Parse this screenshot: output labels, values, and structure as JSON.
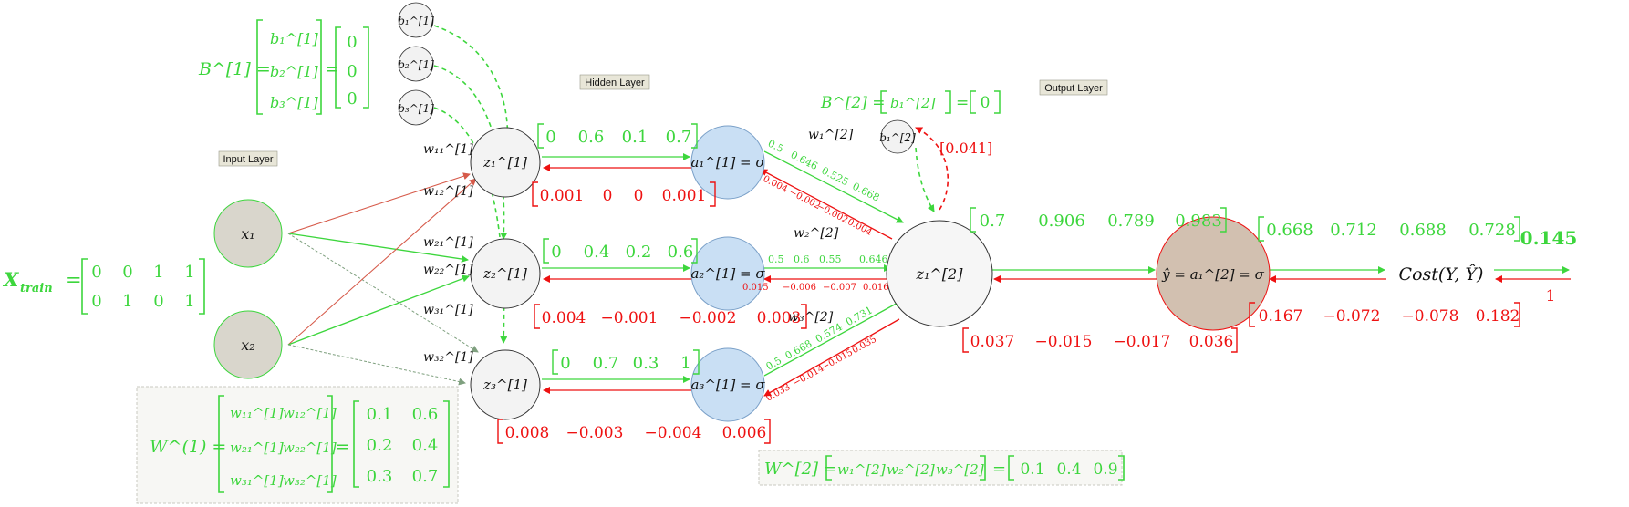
{
  "colors": {
    "forward": "#3dd63d",
    "backward": "#ee1111",
    "input_fill": "#d9d6cc",
    "hidden_z_fill": "#f3f3f3",
    "hidden_a_fill": "#c9dff4",
    "output_z_fill": "#f6f6f6",
    "output_a_fill": "#d2c0b0",
    "layer_label_bg": "#e8e6d8",
    "edge_input": "#d65a4a"
  },
  "layer_labels": {
    "input": "Input Layer",
    "hidden": "Hidden Layer",
    "output": "Output Layer"
  },
  "nodes": {
    "x1": "x₁",
    "x2": "x₂",
    "b11": "b₁^[1]",
    "b12": "b₂^[1]",
    "b13": "b₃^[1]",
    "z11": "z₁^[1]",
    "z12": "z₂^[1]",
    "z13": "z₃^[1]",
    "a11": "a₁^[1] = σ",
    "a12": "a₂^[1] = σ",
    "a13": "a₃^[1] = σ",
    "b21": "b₁^[2]",
    "z2": "z₁^[2]",
    "yhat": "ŷ = a₁^[2] = σ",
    "cost": "Cost(Y, Ŷ)"
  },
  "x_train": {
    "label": "X",
    "subscript": "train",
    "rows": [
      [
        "0",
        "0",
        "1",
        "1"
      ],
      [
        "0",
        "1",
        "0",
        "1"
      ]
    ]
  },
  "b1_matrix": {
    "label": "B^[1] =",
    "symbols": [
      "b₁^[1]",
      "b₂^[1]",
      "b₃^[1]"
    ],
    "values": [
      "0",
      "0",
      "0"
    ]
  },
  "b2_matrix": {
    "label": "B^[2] =",
    "symbol": "b₁^[2]",
    "value": "0"
  },
  "w1_matrix": {
    "label": "W^(1) =",
    "symbols": [
      [
        "w₁₁^[1]",
        "w₁₂^[1]"
      ],
      [
        "w₂₁^[1]",
        "w₂₂^[1]"
      ],
      [
        "w₃₁^[1]",
        "w₃₂^[1]"
      ]
    ],
    "values": [
      [
        "0.1",
        "0.6"
      ],
      [
        "0.2",
        "0.4"
      ],
      [
        "0.3",
        "0.7"
      ]
    ]
  },
  "w2_matrix": {
    "label": "W^[2] =",
    "symbols": [
      "w₁^[2]",
      "w₂^[2]",
      "w₃^[2]"
    ],
    "values": [
      "0.1",
      "0.4",
      "0.9"
    ]
  },
  "weight_labels": {
    "w11": "w₁₁^[1]",
    "w12": "w₁₂^[1]",
    "w21": "w₂₁^[1]",
    "w22": "w₂₂^[1]",
    "w31": "w₃₁^[1]",
    "w32": "w₃₂^[1]",
    "v1": "w₁^[2]",
    "v2": "w₂^[2]",
    "v3": "w₃^[2]"
  },
  "forward": {
    "z1_row": [
      "0",
      "0.6",
      "0.1",
      "0.7"
    ],
    "z2_row": [
      "0",
      "0.4",
      "0.2",
      "0.6"
    ],
    "z3_row": [
      "0",
      "0.7",
      "0.3",
      "1"
    ],
    "a1_out": [
      "0.5",
      "0.646",
      "0.525",
      "0.668"
    ],
    "a2_out": [
      "0.5",
      "0.6",
      "0.55",
      "0.646"
    ],
    "a3_out": [
      "0.5",
      "0.668",
      "0.574",
      "0.731"
    ],
    "z_out": [
      "0.7",
      "0.906",
      "0.789",
      "0.983"
    ],
    "yhat": [
      "0.668",
      "0.712",
      "0.688",
      "0.728"
    ],
    "cost": "0.145"
  },
  "backward": {
    "z1_grad": [
      "0.001",
      "0",
      "0",
      "0.001"
    ],
    "z2_grad": [
      "0.004",
      "−0.001",
      "−0.002",
      "0.003"
    ],
    "z3_grad": [
      "0.008",
      "−0.003",
      "−0.004",
      "0.006"
    ],
    "a1_grad": [
      "0.004",
      "−0.002",
      "−0.002",
      "0.004"
    ],
    "a2_grad": [
      "0.015",
      "−0.006",
      "−0.007",
      "0.016"
    ],
    "a3_grad": [
      "0.033",
      "−0.014",
      "−0.015",
      "0.035"
    ],
    "z_out_grad": [
      "0.037",
      "−0.015",
      "−0.017",
      "0.036"
    ],
    "yhat_grad": [
      "0.167",
      "−0.072",
      "−0.078",
      "0.182"
    ],
    "cost_grad": "1",
    "b2_grad": "[0.041]"
  }
}
